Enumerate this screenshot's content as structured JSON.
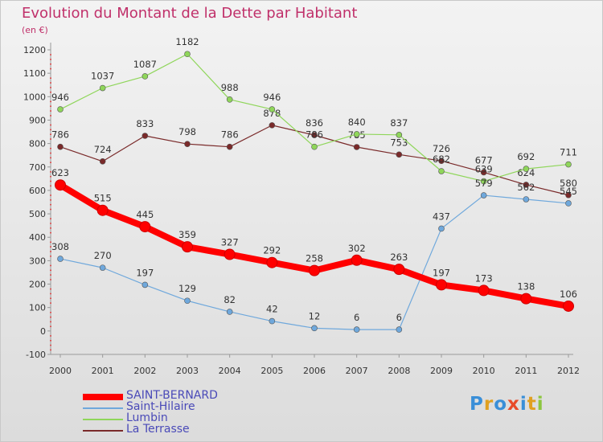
{
  "title": "Evolution du Montant de la Dette par Habitant",
  "subtitle": "(en €)",
  "logo_text": "Proxiti",
  "chart_data": {
    "type": "line",
    "title": "Evolution du Montant de la Dette par Habitant",
    "ylabel": "(en €)",
    "xlabel": "",
    "x": [
      "2000",
      "2001",
      "2002",
      "2003",
      "2004",
      "2005",
      "2006",
      "2007",
      "2008",
      "2009",
      "2010",
      "2011",
      "2012"
    ],
    "ylim": [
      -100,
      1200
    ],
    "yticks": [
      "-100",
      "0",
      "100",
      "200",
      "300",
      "400",
      "500",
      "600",
      "700",
      "800",
      "900",
      "1000",
      "1100",
      "1200"
    ],
    "grid": false,
    "legend_position": "bottom-left",
    "series": [
      {
        "name": "SAINT-BERNARD",
        "color": "#ff0000",
        "values": [
          623,
          515,
          445,
          359,
          327,
          292,
          258,
          302,
          263,
          197,
          173,
          138,
          106
        ]
      },
      {
        "name": "Saint-Hilaire",
        "color": "#6fa8dc",
        "values": [
          308,
          270,
          197,
          129,
          82,
          42,
          12,
          6,
          6,
          437,
          579,
          562,
          545
        ]
      },
      {
        "name": "Lumbin",
        "color": "#8fd65a",
        "values": [
          946,
          1037,
          1087,
          1182,
          988,
          946,
          786,
          840,
          837,
          682,
          639,
          692,
          711
        ]
      },
      {
        "name": "La Terrasse",
        "color": "#7a2a2a",
        "values": [
          786,
          724,
          833,
          798,
          786,
          878,
          836,
          785,
          753,
          726,
          677,
          624,
          580
        ]
      }
    ],
    "data_labels": {
      "SAINT-BERNARD": [
        "623",
        "515",
        "445",
        "359",
        "327",
        "292",
        "258",
        "302",
        "263",
        "197",
        "173",
        "138",
        "106"
      ],
      "Saint-Hilaire": [
        "308",
        "270",
        "197",
        "129",
        "82",
        "42",
        "12",
        "6",
        "6",
        "437",
        "579",
        "562",
        "545"
      ],
      "Lumbin": [
        "946",
        "1037",
        "1087",
        "1182",
        "988",
        "946",
        "786",
        "840",
        "837",
        "682",
        "639",
        "692",
        "711"
      ],
      "La Terrasse": [
        "786",
        "724",
        "833",
        "798",
        "786",
        "878",
        "836",
        "785",
        "753",
        "726",
        "677",
        "624",
        "580"
      ]
    }
  }
}
